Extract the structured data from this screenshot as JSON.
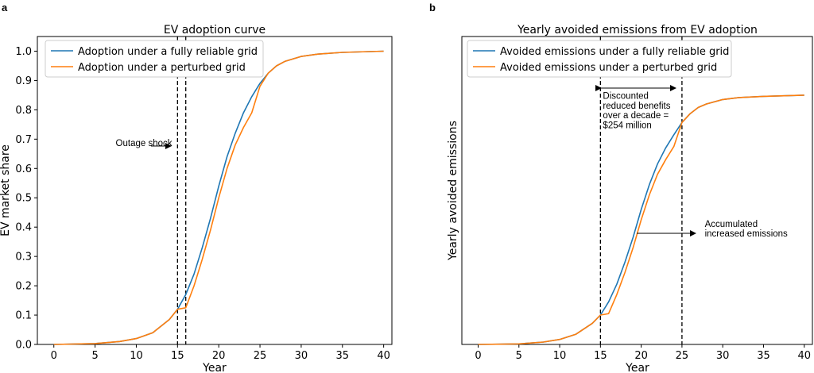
{
  "chart_data": [
    {
      "panel": "a",
      "type": "line",
      "title": "EV adoption curve",
      "xlabel": "Year",
      "ylabel": "EV market share",
      "xlim": [
        -2,
        41
      ],
      "ylim": [
        0.0,
        1.05
      ],
      "xticks": [
        "0",
        "5",
        "10",
        "15",
        "20",
        "25",
        "30",
        "35",
        "40"
      ],
      "yticks": [
        "0.0",
        "0.1",
        "0.2",
        "0.3",
        "0.4",
        "0.5",
        "0.6",
        "0.7",
        "0.8",
        "0.9",
        "1.0"
      ],
      "legend_position": "top-left",
      "grid": false,
      "series": [
        {
          "name": "Adoption under a fully reliable grid",
          "color": "#1f77b4",
          "x": [
            0,
            5,
            8,
            10,
            12,
            14,
            15,
            16,
            17,
            18,
            19,
            20,
            21,
            22,
            23,
            24,
            25,
            26,
            27,
            28,
            30,
            32,
            35,
            40
          ],
          "y": [
            0.0,
            0.003,
            0.01,
            0.02,
            0.04,
            0.085,
            0.12,
            0.17,
            0.24,
            0.33,
            0.43,
            0.54,
            0.64,
            0.72,
            0.79,
            0.845,
            0.89,
            0.925,
            0.95,
            0.965,
            0.982,
            0.99,
            0.996,
            1.0
          ]
        },
        {
          "name": "Adoption under a perturbed grid",
          "color": "#ff7f0e",
          "x": [
            0,
            5,
            8,
            10,
            12,
            14,
            15,
            16,
            17,
            18,
            19,
            20,
            21,
            22,
            23,
            24,
            25,
            26,
            27,
            28,
            30,
            32,
            35,
            40
          ],
          "y": [
            0.0,
            0.003,
            0.01,
            0.02,
            0.04,
            0.085,
            0.12,
            0.125,
            0.2,
            0.29,
            0.39,
            0.5,
            0.6,
            0.68,
            0.74,
            0.79,
            0.88,
            0.925,
            0.95,
            0.965,
            0.982,
            0.99,
            0.996,
            1.0
          ]
        }
      ],
      "vlines": [
        15,
        16
      ],
      "annotations": [
        {
          "text": "Outage shock",
          "x": 7.5,
          "y": 0.676
        }
      ]
    },
    {
      "panel": "b",
      "type": "line",
      "title": "Yearly avoided emissions from EV adoption",
      "xlabel": "Year",
      "ylabel": "Yearly avoided emissions",
      "xlim": [
        -2,
        41
      ],
      "ylim": [
        0.0,
        1.05
      ],
      "xticks": [
        "0",
        "5",
        "10",
        "15",
        "20",
        "25",
        "30",
        "35",
        "40"
      ],
      "yticks": [],
      "legend_position": "top-left",
      "grid": false,
      "series": [
        {
          "name": "Avoided emissions under a fully reliable grid",
          "color": "#1f77b4",
          "x": [
            0,
            5,
            8,
            10,
            12,
            14,
            15,
            16,
            17,
            18,
            19,
            20,
            21,
            22,
            23,
            24,
            25,
            26,
            27,
            28,
            30,
            32,
            35,
            40
          ],
          "y": [
            0.0,
            0.002,
            0.008,
            0.017,
            0.035,
            0.072,
            0.1,
            0.145,
            0.205,
            0.28,
            0.365,
            0.46,
            0.545,
            0.615,
            0.67,
            0.715,
            0.757,
            0.787,
            0.808,
            0.82,
            0.835,
            0.842,
            0.846,
            0.85
          ]
        },
        {
          "name": "Avoided emissions under a perturbed grid",
          "color": "#ff7f0e",
          "x": [
            0,
            5,
            8,
            10,
            12,
            14,
            15,
            16,
            17,
            18,
            19,
            20,
            21,
            22,
            23,
            24,
            25,
            26,
            27,
            28,
            30,
            32,
            35,
            40
          ],
          "y": [
            0.0,
            0.002,
            0.008,
            0.017,
            0.035,
            0.072,
            0.1,
            0.105,
            0.17,
            0.245,
            0.33,
            0.425,
            0.51,
            0.58,
            0.63,
            0.675,
            0.757,
            0.787,
            0.808,
            0.82,
            0.835,
            0.842,
            0.846,
            0.85
          ]
        }
      ],
      "vlines": [
        15,
        25
      ],
      "annotations": [
        {
          "text": "Discounted",
          "x": 15.3,
          "y": 0.838
        },
        {
          "text": "reduced benefits",
          "x": 15.3,
          "y": 0.804
        },
        {
          "text": "over a decade =",
          "x": 15.3,
          "y": 0.771
        },
        {
          "text": "$254 million",
          "x": 15.3,
          "y": 0.738
        },
        {
          "text": "Accumulated",
          "x": 27.8,
          "y": 0.401
        },
        {
          "text": "increased emissions",
          "x": 27.8,
          "y": 0.368
        }
      ]
    }
  ],
  "panel_labels": [
    "a",
    "b"
  ]
}
